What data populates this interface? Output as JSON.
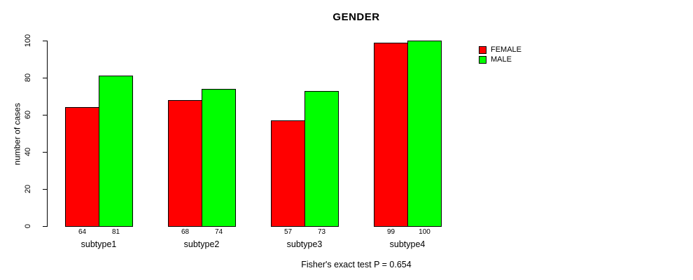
{
  "figure": {
    "title": "GENDER",
    "caption": "Fisher's exact test P = 0.654"
  },
  "colors": {
    "female": "#ff0000",
    "male": "#00ff00",
    "axis": "#000000",
    "background": "#ffffff"
  },
  "legend": {
    "position": "right",
    "items": [
      {
        "label": "FEMALE",
        "color": "#ff0000"
      },
      {
        "label": "MALE",
        "color": "#00ff00"
      }
    ]
  },
  "chart_data": {
    "type": "bar",
    "title": "GENDER",
    "xlabel": "",
    "ylabel": "number of cases",
    "categories": [
      "subtype1",
      "subtype2",
      "subtype3",
      "subtype4"
    ],
    "series": [
      {
        "name": "FEMALE",
        "color": "#ff0000",
        "values": [
          64,
          68,
          57,
          99
        ]
      },
      {
        "name": "MALE",
        "color": "#00ff00",
        "values": [
          81,
          74,
          73,
          100
        ]
      }
    ],
    "bar_value_labels": [
      [
        64,
        81
      ],
      [
        68,
        74
      ],
      [
        57,
        73
      ],
      [
        99,
        100
      ]
    ],
    "ylim": [
      0,
      100
    ],
    "yticks": [
      0,
      20,
      40,
      60,
      80,
      100
    ],
    "grid": false,
    "legend_position": "right",
    "annotation": "Fisher's exact test P = 0.654"
  }
}
